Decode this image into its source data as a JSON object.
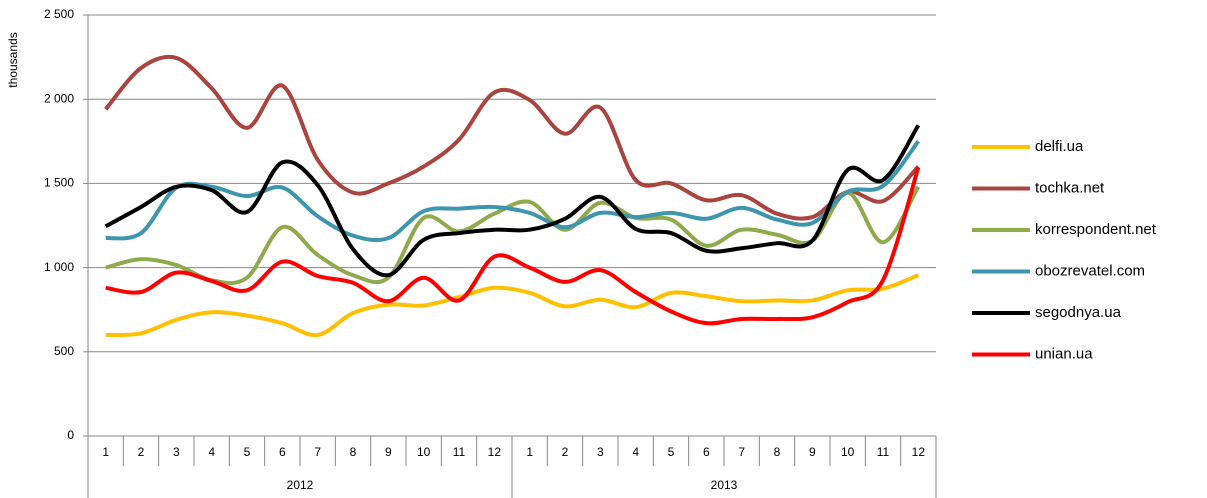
{
  "chart_data": {
    "type": "line",
    "y_label": "thousands",
    "categories": [
      "1",
      "2",
      "3",
      "4",
      "5",
      "6",
      "7",
      "8",
      "9",
      "10",
      "11",
      "12",
      "1",
      "2",
      "3",
      "4",
      "5",
      "6",
      "7",
      "8",
      "9",
      "10",
      "11",
      "12"
    ],
    "category_groups": [
      "2012",
      "2013"
    ],
    "ylim": [
      0,
      2500
    ],
    "yticks": [
      0,
      500,
      {
        "value": 1000,
        "label": "1 000"
      },
      {
        "value": 1500,
        "label": "1 500"
      },
      {
        "value": 2000,
        "label": "2 000"
      },
      {
        "value": 2500,
        "label": "2 500"
      }
    ],
    "grid": true,
    "legend": "right",
    "series": [
      {
        "name": "delfi.ua",
        "color": "#ffc000",
        "values": [
          600,
          610,
          690,
          735,
          715,
          670,
          600,
          730,
          780,
          775,
          825,
          880,
          850,
          770,
          810,
          765,
          850,
          830,
          800,
          805,
          805,
          865,
          875,
          955
        ]
      },
      {
        "name": "tochka.net",
        "color": "#a9443f",
        "values": [
          1940,
          2185,
          2245,
          2065,
          1830,
          2080,
          1640,
          1445,
          1500,
          1600,
          1760,
          2040,
          1995,
          1795,
          1950,
          1520,
          1500,
          1400,
          1430,
          1320,
          1300,
          1450,
          1395,
          1600
        ]
      },
      {
        "name": "korrespondent.net",
        "color": "#8faa4c",
        "values": [
          1000,
          1050,
          1015,
          925,
          940,
          1240,
          1075,
          955,
          940,
          1295,
          1215,
          1320,
          1390,
          1225,
          1385,
          1295,
          1285,
          1130,
          1225,
          1195,
          1160,
          1445,
          1150,
          1480
        ]
      },
      {
        "name": "obozrevatel.com",
        "color": "#3d96ae",
        "values": [
          1175,
          1205,
          1475,
          1480,
          1425,
          1475,
          1305,
          1190,
          1175,
          1335,
          1350,
          1360,
          1325,
          1240,
          1325,
          1300,
          1325,
          1290,
          1355,
          1285,
          1265,
          1450,
          1485,
          1750
        ]
      },
      {
        "name": "segodnya.ua",
        "color": "#000000",
        "values": [
          1245,
          1360,
          1480,
          1460,
          1330,
          1625,
          1490,
          1110,
          955,
          1165,
          1205,
          1225,
          1225,
          1290,
          1420,
          1230,
          1205,
          1100,
          1115,
          1145,
          1160,
          1580,
          1520,
          1845
        ]
      },
      {
        "name": "unian.ua",
        "color": "#ff0000",
        "values": [
          880,
          855,
          970,
          920,
          865,
          1035,
          950,
          910,
          800,
          940,
          805,
          1065,
          1000,
          915,
          985,
          855,
          740,
          670,
          695,
          695,
          705,
          795,
          925,
          1595
        ]
      }
    ]
  }
}
